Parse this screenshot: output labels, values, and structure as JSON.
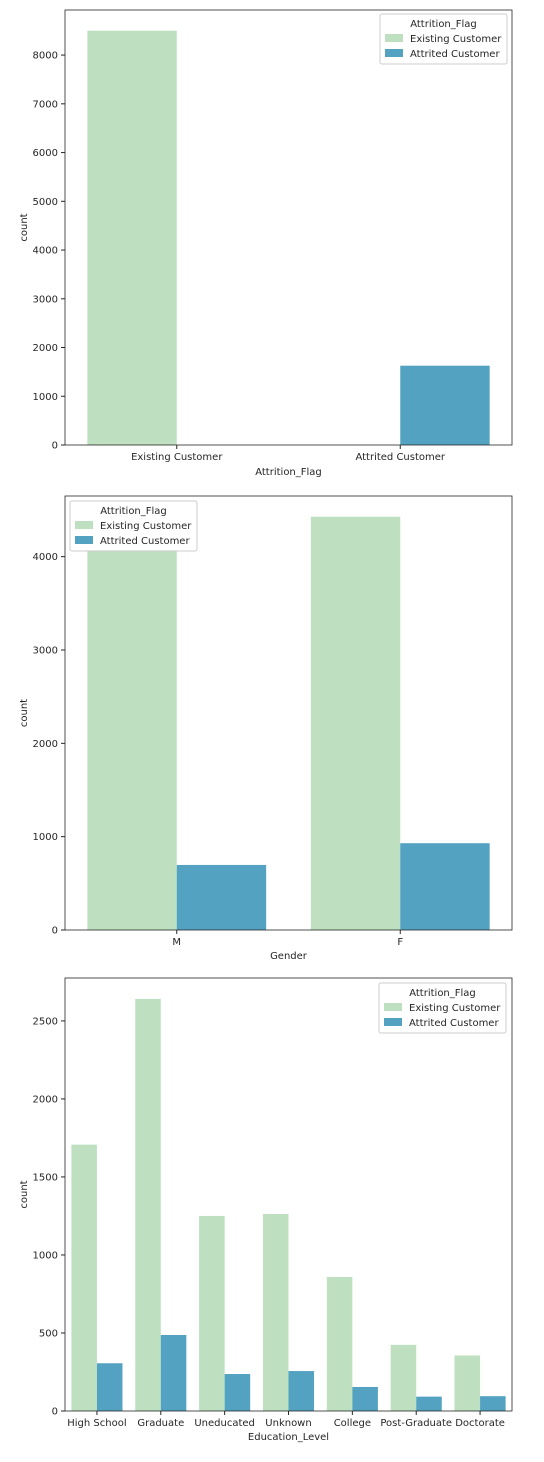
{
  "colors": {
    "existing": "#bee0c0",
    "attrited": "#53a2c2"
  },
  "chart_data": [
    {
      "type": "bar",
      "categories": [
        "Existing Customer",
        "Attrited Customer"
      ],
      "series": [
        {
          "name": "Existing Customer",
          "values": [
            8500,
            0
          ]
        },
        {
          "name": "Attrited Customer",
          "values": [
            0,
            1627
          ]
        }
      ],
      "xlabel": "Attrition_Flag",
      "ylabel": "count",
      "ylim": [
        0,
        8925
      ],
      "yticks": [
        0,
        1000,
        2000,
        3000,
        4000,
        5000,
        6000,
        7000,
        8000
      ],
      "legend": {
        "title": "Attrition_Flag",
        "placement": "top-right"
      }
    },
    {
      "type": "bar",
      "categories": [
        "M",
        "F"
      ],
      "series": [
        {
          "name": "Existing Customer",
          "values": [
            4072,
            4428
          ]
        },
        {
          "name": "Attrited Customer",
          "values": [
            697,
            930
          ]
        }
      ],
      "xlabel": "Gender",
      "ylabel": "count",
      "ylim": [
        0,
        4650
      ],
      "yticks": [
        0,
        1000,
        2000,
        3000,
        4000
      ],
      "legend": {
        "title": "Attrition_Flag",
        "placement": "top-left"
      }
    },
    {
      "type": "bar",
      "categories": [
        "High School",
        "Graduate",
        "Uneducated",
        "Unknown",
        "College",
        "Post-Graduate",
        "Doctorate"
      ],
      "series": [
        {
          "name": "Existing Customer",
          "values": [
            1707,
            2641,
            1250,
            1263,
            859,
            424,
            356
          ]
        },
        {
          "name": "Attrited Customer",
          "values": [
            306,
            487,
            237,
            256,
            154,
            92,
            95
          ]
        }
      ],
      "xlabel": "Education_Level",
      "ylabel": "count",
      "ylim": [
        0,
        2775
      ],
      "yticks": [
        0,
        500,
        1000,
        1500,
        2000,
        2500
      ],
      "legend": {
        "title": "Attrition_Flag",
        "placement": "top-right"
      }
    }
  ]
}
